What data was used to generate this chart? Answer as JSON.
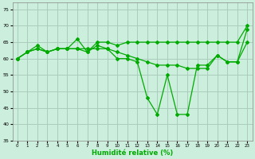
{
  "xlabel": "Humidité relative (%)",
  "ylabel": "",
  "xlim": [
    -0.5,
    23.5
  ],
  "ylim": [
    35,
    77
  ],
  "yticks": [
    35,
    40,
    45,
    50,
    55,
    60,
    65,
    70,
    75
  ],
  "xticks": [
    0,
    1,
    2,
    3,
    4,
    5,
    6,
    7,
    8,
    9,
    10,
    11,
    12,
    13,
    14,
    15,
    16,
    17,
    18,
    19,
    20,
    21,
    22,
    23
  ],
  "bg_color": "#cceedd",
  "grid_color": "#aaccbb",
  "line_color": "#00aa00",
  "series": [
    [
      60,
      62,
      64,
      62,
      63,
      63,
      66,
      62,
      65,
      65,
      64,
      65,
      65,
      65,
      65,
      65,
      65,
      65,
      65,
      65,
      65,
      65,
      65,
      70
    ],
    [
      60,
      62,
      63,
      62,
      63,
      63,
      63,
      62,
      64,
      63,
      60,
      60,
      59,
      48,
      43,
      55,
      43,
      43,
      58,
      58,
      61,
      59,
      59,
      69
    ],
    [
      60,
      62,
      63,
      62,
      63,
      63,
      63,
      63,
      63,
      63,
      62,
      61,
      60,
      59,
      58,
      58,
      58,
      57,
      57,
      57,
      61,
      59,
      59,
      65
    ]
  ]
}
